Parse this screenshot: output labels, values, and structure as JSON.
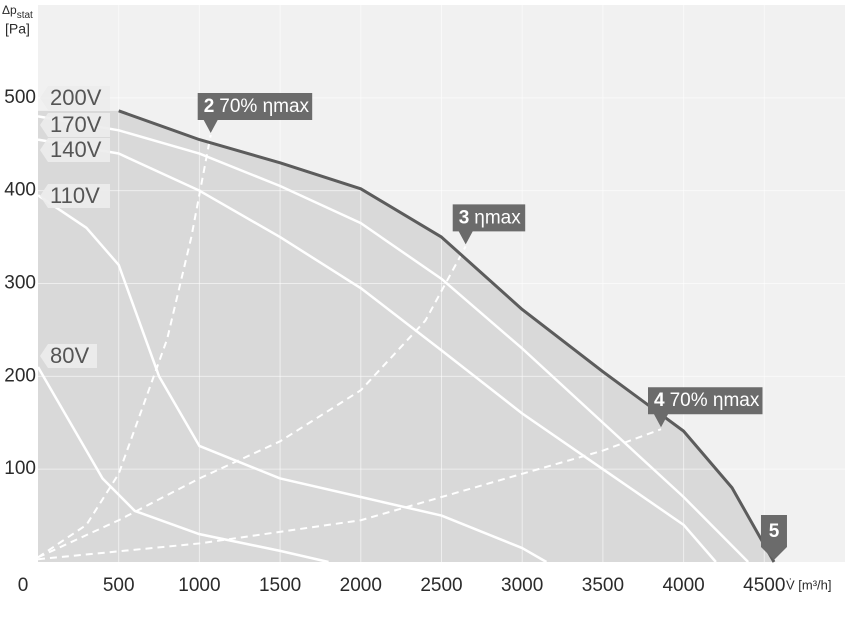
{
  "chart_data": {
    "type": "line",
    "ylabel_symbol": "Δp",
    "ylabel_subscript": "stat",
    "ylabel_unit": "[Pa]",
    "xlabel": "V̇ [m³/h]",
    "xlim": [
      0,
      5000
    ],
    "ylim": [
      0,
      600
    ],
    "xticks": [
      0,
      500,
      1000,
      1500,
      2000,
      2500,
      3000,
      3500,
      4000,
      4500
    ],
    "yticks": [
      100,
      200,
      300,
      400,
      500
    ],
    "grid": true,
    "series": [
      {
        "name": "200V",
        "color": "#5c5c5c",
        "x": [
          500,
          1000,
          1500,
          2000,
          2500,
          3000,
          3500,
          4000,
          4300,
          4560
        ],
        "values": [
          486,
          455,
          430,
          402,
          350,
          272,
          205,
          141,
          80,
          0
        ]
      },
      {
        "name": "170V",
        "color": "#ffffff",
        "x": [
          0,
          500,
          1000,
          1500,
          2000,
          2500,
          3000,
          3500,
          4000,
          4400
        ],
        "values": [
          480,
          465,
          440,
          405,
          365,
          305,
          230,
          150,
          70,
          0
        ]
      },
      {
        "name": "140V",
        "color": "#ffffff",
        "x": [
          0,
          500,
          1000,
          1500,
          2000,
          2500,
          3000,
          3500,
          4000,
          4200
        ],
        "values": [
          455,
          440,
          400,
          350,
          295,
          228,
          160,
          100,
          40,
          0
        ]
      },
      {
        "name": "110V",
        "color": "#ffffff",
        "x": [
          0,
          300,
          500,
          750,
          1000,
          1500,
          2000,
          2500,
          3000,
          3150
        ],
        "values": [
          395,
          360,
          320,
          200,
          125,
          90,
          70,
          50,
          15,
          0
        ]
      },
      {
        "name": "80V",
        "color": "#ffffff",
        "x": [
          0,
          200,
          400,
          600,
          1000,
          1500,
          1800
        ],
        "values": [
          210,
          150,
          90,
          55,
          30,
          12,
          0
        ]
      }
    ],
    "operating_lines": [
      {
        "number": "2",
        "name": "70% ηmax",
        "x": [
          0,
          300,
          500,
          800,
          950,
          1070
        ],
        "values": [
          5,
          40,
          95,
          240,
          350,
          460
        ]
      },
      {
        "number": "3",
        "name": "ηmax",
        "x": [
          0,
          500,
          1000,
          1500,
          2000,
          2400,
          2650
        ],
        "values": [
          5,
          45,
          90,
          130,
          185,
          260,
          340
        ]
      },
      {
        "number": "4",
        "name": "70% ηmax",
        "x": [
          0,
          1000,
          2000,
          2500,
          3000,
          3500,
          3860
        ],
        "values": [
          3,
          20,
          45,
          70,
          95,
          120,
          143
        ]
      }
    ],
    "points": [
      {
        "number": "5",
        "x": 4560,
        "value": 0
      }
    ]
  }
}
